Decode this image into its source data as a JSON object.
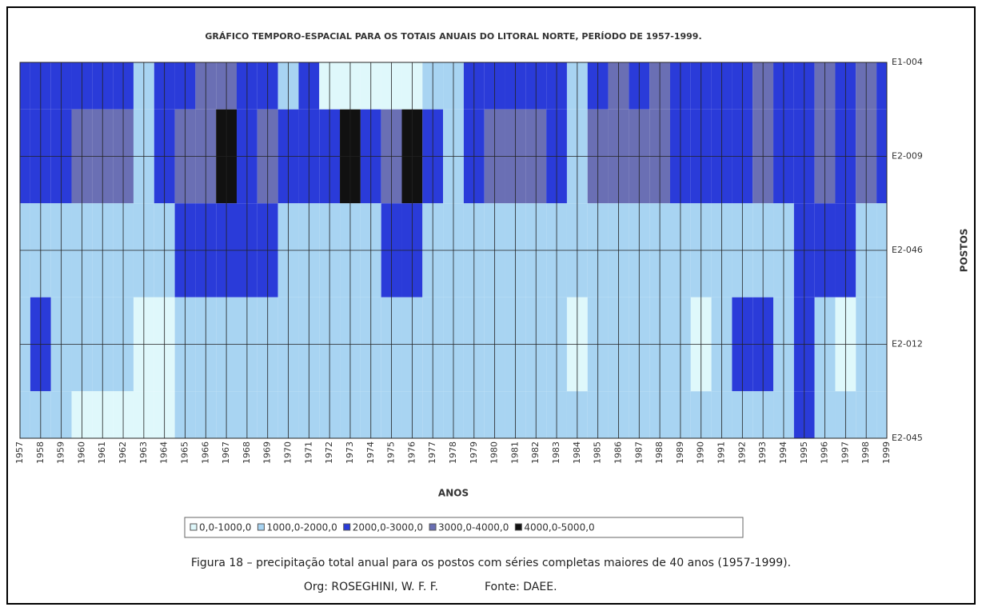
{
  "chart_data": {
    "type": "contour",
    "title": "GRÁFICO TEMPORO-ESPACIAL PARA OS TOTAIS ANUAIS DO LITORAL NORTE, PERÍODO DE 1957-1999.",
    "xlabel": "ANOS",
    "ylabel": "POSTOS",
    "x": [
      1957,
      1958,
      1959,
      1960,
      1961,
      1962,
      1963,
      1964,
      1965,
      1966,
      1967,
      1968,
      1969,
      1970,
      1971,
      1972,
      1973,
      1974,
      1975,
      1976,
      1977,
      1978,
      1979,
      1980,
      1981,
      1982,
      1983,
      1984,
      1985,
      1986,
      1987,
      1988,
      1989,
      1990,
      1991,
      1992,
      1993,
      1994,
      1995,
      1996,
      1997,
      1998,
      1999
    ],
    "xlim": [
      1957,
      1999
    ],
    "xticks": [
      1957,
      1958,
      1959,
      1960,
      1961,
      1962,
      1963,
      1964,
      1965,
      1966,
      1967,
      1968,
      1969,
      1970,
      1971,
      1972,
      1973,
      1974,
      1975,
      1976,
      1977,
      1978,
      1979,
      1980,
      1981,
      1982,
      1983,
      1984,
      1985,
      1986,
      1987,
      1988,
      1989,
      1990,
      1991,
      1992,
      1993,
      1994,
      1995,
      1996,
      1997,
      1998,
      1999
    ],
    "y": [
      "E1-004",
      "E2-009",
      "E2-046",
      "E2-012",
      "E2-045"
    ],
    "z": [
      [
        2500,
        2500,
        2500,
        2500,
        2500,
        2500,
        1500,
        2500,
        2500,
        3200,
        3200,
        2500,
        2500,
        1500,
        2200,
        900,
        900,
        800,
        900,
        900,
        1500,
        1500,
        2500,
        2500,
        2500,
        2500,
        2500,
        1500,
        2500,
        3200,
        2800,
        3100,
        2500,
        2500,
        2500,
        2500,
        3200,
        2500,
        2500,
        3300,
        2500,
        3200,
        2500
      ],
      [
        2500,
        2500,
        2500,
        3200,
        3100,
        3200,
        1500,
        2600,
        3200,
        3500,
        4200,
        2500,
        3200,
        2500,
        2500,
        2500,
        4100,
        2500,
        3200,
        4100,
        2500,
        1800,
        2600,
        3200,
        3300,
        3100,
        2500,
        1500,
        3300,
        3500,
        3200,
        3300,
        2500,
        2500,
        2600,
        2800,
        3100,
        2500,
        2600,
        3300,
        2500,
        3200,
        2500
      ],
      [
        1500,
        1800,
        1900,
        1500,
        1500,
        1500,
        1500,
        1500,
        2200,
        2600,
        2600,
        2600,
        2600,
        1500,
        1500,
        1500,
        1500,
        1500,
        2100,
        2100,
        1500,
        1500,
        1500,
        1500,
        1500,
        1500,
        1900,
        1500,
        1500,
        1500,
        1500,
        1500,
        1500,
        1500,
        1500,
        1500,
        1500,
        1500,
        2600,
        2300,
        2200,
        1500,
        1500
      ],
      [
        1500,
        2100,
        1500,
        1500,
        1500,
        1500,
        900,
        900,
        1500,
        1500,
        1500,
        1500,
        1500,
        1500,
        1500,
        1500,
        1500,
        1500,
        1500,
        1500,
        1500,
        1500,
        1500,
        1500,
        1500,
        1500,
        1500,
        900,
        1500,
        1500,
        1500,
        1500,
        1500,
        800,
        1500,
        2300,
        2300,
        1500,
        2500,
        1500,
        800,
        1500,
        1500
      ],
      [
        1500,
        1500,
        1500,
        900,
        900,
        900,
        900,
        900,
        1500,
        1500,
        1500,
        1500,
        1500,
        1500,
        1500,
        1500,
        1500,
        1500,
        1500,
        1500,
        1500,
        1500,
        1500,
        1500,
        1500,
        1500,
        1500,
        1500,
        1500,
        1500,
        1500,
        1500,
        1500,
        1500,
        1500,
        1500,
        1500,
        1500,
        2500,
        1500,
        1500,
        1500,
        1500
      ]
    ],
    "levels": [
      0,
      1000,
      2000,
      3000,
      4000,
      5000
    ],
    "classes": [
      {
        "label": "0,0-1000,0",
        "color": "#dff8fb"
      },
      {
        "label": "1000,0-2000,0",
        "color": "#a8d4f2"
      },
      {
        "label": "2000,0-3000,0",
        "color": "#2a3bd9"
      },
      {
        "label": "3000,0-4000,0",
        "color": "#6a6fb4"
      },
      {
        "label": "4000,0-5000,0",
        "color": "#111111"
      }
    ],
    "grid": true
  },
  "caption": {
    "text": "Figura 18 – precipitação total anual para os postos com séries completas maiores de 40 anos (1957-1999).",
    "org": "Org: ROSEGHINI, W. F. F.",
    "source": "Fonte: DAEE."
  }
}
